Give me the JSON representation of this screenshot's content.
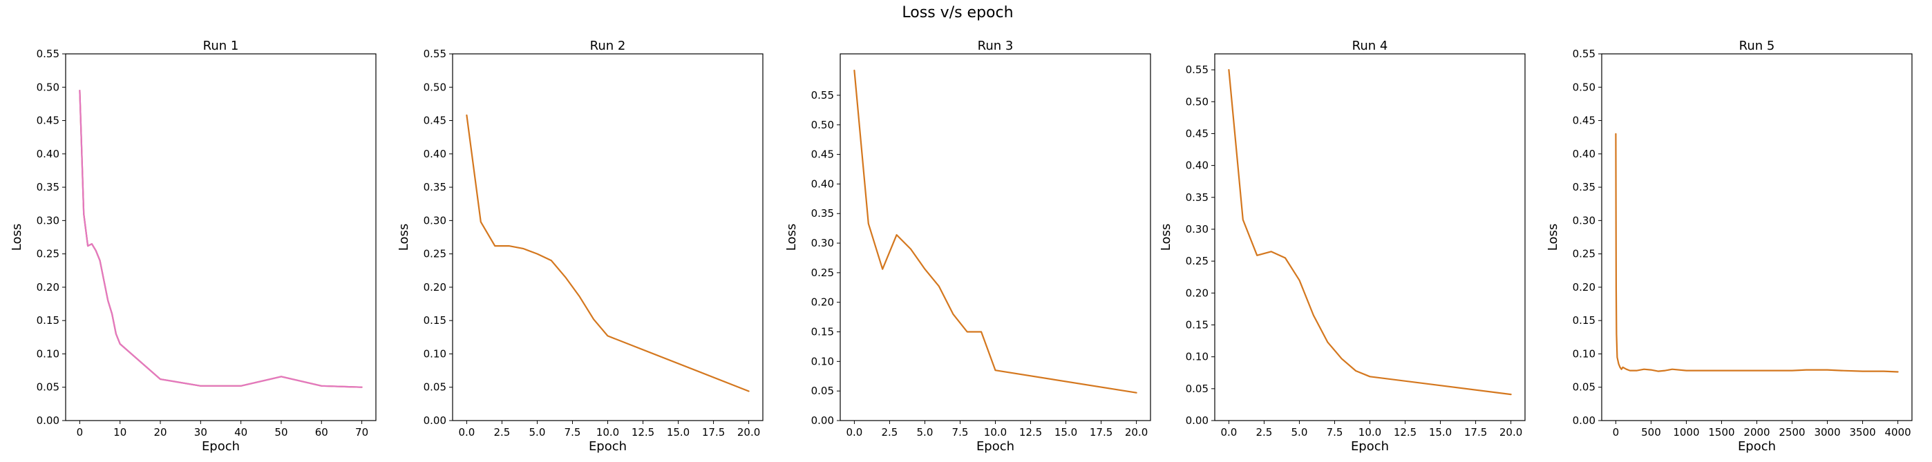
{
  "figure": {
    "title": "Loss v/s epoch"
  },
  "colors": {
    "line_orange": "#d4771e",
    "line_pink": "#e377c2",
    "axes": "#000000"
  },
  "chart_data": [
    {
      "type": "line",
      "title": "Run 1",
      "xlabel": "Epoch",
      "ylabel": "Loss",
      "xlim": [
        -3.5,
        73.5
      ],
      "ylim": [
        0,
        0.55
      ],
      "xticks": [
        0,
        10,
        20,
        30,
        40,
        50,
        60,
        70
      ],
      "xtick_labels": [
        "0",
        "10",
        "20",
        "30",
        "40",
        "50",
        "60",
        "70"
      ],
      "yticks": [
        0,
        0.05,
        0.1,
        0.15,
        0.2,
        0.25,
        0.3,
        0.35,
        0.4,
        0.45,
        0.5,
        0.55
      ],
      "ytick_labels": [
        "0.00",
        "0.05",
        "0.10",
        "0.15",
        "0.20",
        "0.25",
        "0.30",
        "0.35",
        "0.40",
        "0.45",
        "0.50",
        "0.55"
      ],
      "grid": false,
      "series": [
        {
          "color": "#d4771e",
          "x": [
            0,
            1,
            2,
            3,
            4,
            5,
            6,
            7,
            8,
            9,
            10,
            20,
            30,
            40,
            50,
            60,
            70
          ],
          "y": [
            0.495,
            0.31,
            0.262,
            0.265,
            0.255,
            0.24,
            0.21,
            0.18,
            0.16,
            0.13,
            0.115,
            0.062,
            0.052,
            0.052,
            0.066,
            0.052,
            0.05
          ]
        },
        {
          "color": "#e377c2",
          "x": [
            0,
            1,
            2,
            3,
            4,
            5,
            6,
            7,
            8,
            9,
            10,
            20,
            30,
            40,
            50,
            60,
            70
          ],
          "y": [
            0.495,
            0.31,
            0.262,
            0.265,
            0.255,
            0.24,
            0.21,
            0.18,
            0.16,
            0.13,
            0.115,
            0.062,
            0.052,
            0.052,
            0.066,
            0.052,
            0.05
          ]
        }
      ]
    },
    {
      "type": "line",
      "title": "Run 2",
      "xlabel": "Epoch",
      "ylabel": "Loss",
      "xlim": [
        -1,
        21
      ],
      "ylim": [
        0,
        0.55
      ],
      "xticks": [
        0,
        2.5,
        5,
        7.5,
        10,
        12.5,
        15,
        17.5,
        20
      ],
      "xtick_labels": [
        "0.0",
        "2.5",
        "5.0",
        "7.5",
        "10.0",
        "12.5",
        "15.0",
        "17.5",
        "20.0"
      ],
      "yticks": [
        0,
        0.05,
        0.1,
        0.15,
        0.2,
        0.25,
        0.3,
        0.35,
        0.4,
        0.45,
        0.5,
        0.55
      ],
      "ytick_labels": [
        "0.00",
        "0.05",
        "0.10",
        "0.15",
        "0.20",
        "0.25",
        "0.30",
        "0.35",
        "0.40",
        "0.45",
        "0.50",
        "0.55"
      ],
      "grid": false,
      "series": [
        {
          "color": "#d4771e",
          "x": [
            0,
            1,
            2,
            3,
            4,
            5,
            6,
            7,
            8,
            9,
            10,
            20
          ],
          "y": [
            0.458,
            0.298,
            0.262,
            0.262,
            0.258,
            0.25,
            0.24,
            0.215,
            0.186,
            0.152,
            0.127,
            0.044
          ]
        }
      ]
    },
    {
      "type": "line",
      "title": "Run 3",
      "xlabel": "Epoch",
      "ylabel": "Loss",
      "xlim": [
        -1,
        21
      ],
      "ylim": [
        0,
        0.62
      ],
      "xticks": [
        0,
        2.5,
        5,
        7.5,
        10,
        12.5,
        15,
        17.5,
        20
      ],
      "xtick_labels": [
        "0.0",
        "2.5",
        "5.0",
        "7.5",
        "10.0",
        "12.5",
        "15.0",
        "17.5",
        "20.0"
      ],
      "yticks": [
        0,
        0.05,
        0.1,
        0.15,
        0.2,
        0.25,
        0.3,
        0.35,
        0.4,
        0.45,
        0.5,
        0.55
      ],
      "ytick_labels": [
        "0.00",
        "0.05",
        "0.10",
        "0.15",
        "0.20",
        "0.25",
        "0.30",
        "0.35",
        "0.40",
        "0.45",
        "0.50",
        "0.55"
      ],
      "grid": false,
      "series": [
        {
          "color": "#d4771e",
          "x": [
            0,
            1,
            2,
            3,
            4,
            5,
            6,
            7,
            8,
            9,
            10,
            20
          ],
          "y": [
            0.592,
            0.333,
            0.256,
            0.314,
            0.29,
            0.256,
            0.227,
            0.18,
            0.15,
            0.15,
            0.085,
            0.047
          ]
        }
      ]
    },
    {
      "type": "line",
      "title": "Run 4",
      "xlabel": "Epoch",
      "ylabel": "Loss",
      "xlim": [
        -1,
        21
      ],
      "ylim": [
        0,
        0.575
      ],
      "xticks": [
        0,
        2.5,
        5,
        7.5,
        10,
        12.5,
        15,
        17.5,
        20
      ],
      "xtick_labels": [
        "0.0",
        "2.5",
        "5.0",
        "7.5",
        "10.0",
        "12.5",
        "15.0",
        "17.5",
        "20.0"
      ],
      "yticks": [
        0,
        0.05,
        0.1,
        0.15,
        0.2,
        0.25,
        0.3,
        0.35,
        0.4,
        0.45,
        0.5,
        0.55
      ],
      "ytick_labels": [
        "0.00",
        "0.05",
        "0.10",
        "0.15",
        "0.20",
        "0.25",
        "0.30",
        "0.35",
        "0.40",
        "0.45",
        "0.50",
        "0.55"
      ],
      "grid": false,
      "series": [
        {
          "color": "#d4771e",
          "x": [
            0,
            1,
            2,
            3,
            4,
            5,
            6,
            7,
            8,
            9,
            10,
            20
          ],
          "y": [
            0.55,
            0.315,
            0.259,
            0.265,
            0.255,
            0.22,
            0.165,
            0.123,
            0.097,
            0.078,
            0.069,
            0.041
          ]
        }
      ]
    },
    {
      "type": "line",
      "title": "Run 5",
      "xlabel": "Epoch",
      "ylabel": "Loss",
      "xlim": [
        -200,
        4200
      ],
      "ylim": [
        0,
        0.55
      ],
      "xticks": [
        0,
        500,
        1000,
        1500,
        2000,
        2500,
        3000,
        3500,
        4000
      ],
      "xtick_labels": [
        "0",
        "500",
        "1000",
        "1500",
        "2000",
        "2500",
        "3000",
        "3500",
        "4000"
      ],
      "yticks": [
        0,
        0.05,
        0.1,
        0.15,
        0.2,
        0.25,
        0.3,
        0.35,
        0.4,
        0.45,
        0.5,
        0.55
      ],
      "ytick_labels": [
        "0.00",
        "0.05",
        "0.10",
        "0.15",
        "0.20",
        "0.25",
        "0.30",
        "0.35",
        "0.40",
        "0.45",
        "0.50",
        "0.55"
      ],
      "grid": false,
      "series": [
        {
          "color": "#d4771e",
          "x": [
            0,
            5,
            10,
            20,
            40,
            60,
            80,
            100,
            150,
            200,
            300,
            400,
            500,
            600,
            700,
            800,
            1000,
            1500,
            2000,
            2500,
            2700,
            3000,
            3200,
            3500,
            3800,
            4000
          ],
          "y": [
            0.43,
            0.2,
            0.13,
            0.095,
            0.085,
            0.08,
            0.077,
            0.08,
            0.077,
            0.075,
            0.075,
            0.077,
            0.076,
            0.074,
            0.075,
            0.077,
            0.075,
            0.075,
            0.075,
            0.075,
            0.076,
            0.076,
            0.075,
            0.074,
            0.074,
            0.073
          ]
        }
      ]
    }
  ]
}
